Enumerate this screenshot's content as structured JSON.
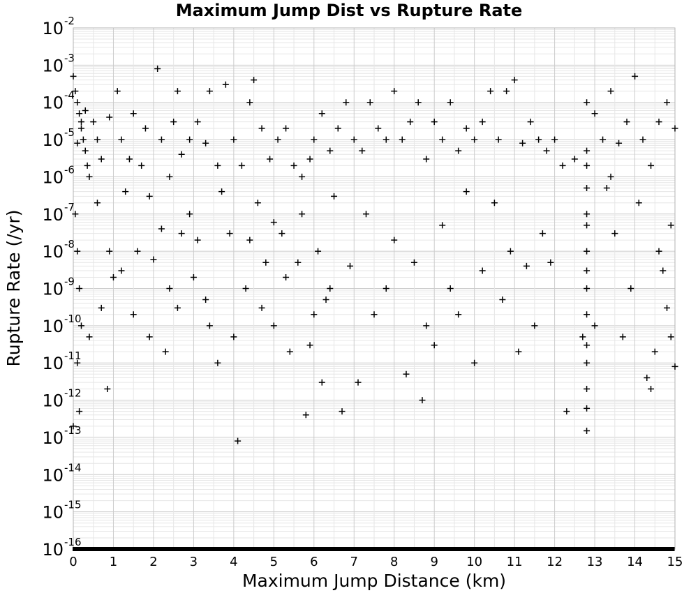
{
  "chart_data": {
    "type": "scatter",
    "title": "Maximum Jump Dist vs Rupture Rate",
    "xlabel": "Maximum Jump Distance (km)",
    "ylabel": "Rupture Rate (/yr)",
    "xlim": [
      0,
      15
    ],
    "ylim_log10": [
      -16,
      -2
    ],
    "y_scale": "log",
    "grid": true,
    "legend": "none",
    "marker": "plus",
    "marker_color": "#000000",
    "x_ticks": [
      "0",
      "1",
      "2",
      "3",
      "4",
      "5",
      "6",
      "7",
      "8",
      "9",
      "10",
      "11",
      "12",
      "13",
      "14",
      "15"
    ],
    "y_ticks": [
      {
        "base": "10",
        "exp": "-2"
      },
      {
        "base": "10",
        "exp": "-3"
      },
      {
        "base": "10",
        "exp": "-4"
      },
      {
        "base": "10",
        "exp": "-5"
      },
      {
        "base": "10",
        "exp": "-6"
      },
      {
        "base": "10",
        "exp": "-7"
      },
      {
        "base": "10",
        "exp": "-8"
      },
      {
        "base": "10",
        "exp": "-9"
      },
      {
        "base": "10",
        "exp": "-10"
      },
      {
        "base": "10",
        "exp": "-11"
      },
      {
        "base": "10",
        "exp": "-12"
      },
      {
        "base": "10",
        "exp": "-13"
      },
      {
        "base": "10",
        "exp": "-14"
      },
      {
        "base": "10",
        "exp": "-15"
      },
      {
        "base": "10",
        "exp": "-16"
      }
    ],
    "points": [
      {
        "x": 0.0,
        "y": 0.0005
      },
      {
        "x": 0.05,
        "y": 0.0002
      },
      {
        "x": 0.1,
        "y": 0.0001
      },
      {
        "x": 0.15,
        "y": 5e-05
      },
      {
        "x": 0.2,
        "y": 2e-05
      },
      {
        "x": 0.25,
        "y": 1e-05
      },
      {
        "x": 0.3,
        "y": 5e-06
      },
      {
        "x": 0.35,
        "y": 2e-06
      },
      {
        "x": 0.4,
        "y": 1e-06
      },
      {
        "x": 0.1,
        "y": 8e-06
      },
      {
        "x": 0.2,
        "y": 3e-05
      },
      {
        "x": 0.3,
        "y": 6e-05
      },
      {
        "x": 0.05,
        "y": 1e-07
      },
      {
        "x": 0.1,
        "y": 1e-08
      },
      {
        "x": 0.15,
        "y": 1e-09
      },
      {
        "x": 0.2,
        "y": 1e-10
      },
      {
        "x": 0.1,
        "y": 1e-11
      },
      {
        "x": 0.0,
        "y": 2e-13
      },
      {
        "x": 0.15,
        "y": 5e-13
      },
      {
        "x": 0.85,
        "y": 2e-12
      },
      {
        "x": 0.5,
        "y": 3e-05
      },
      {
        "x": 0.6,
        "y": 1e-05
      },
      {
        "x": 0.7,
        "y": 3e-06
      },
      {
        "x": 0.9,
        "y": 4e-05
      },
      {
        "x": 1.1,
        "y": 0.0002
      },
      {
        "x": 1.2,
        "y": 1e-05
      },
      {
        "x": 1.4,
        "y": 3e-06
      },
      {
        "x": 1.5,
        "y": 5e-05
      },
      {
        "x": 1.7,
        "y": 2e-06
      },
      {
        "x": 1.8,
        "y": 2e-05
      },
      {
        "x": 1.9,
        "y": 3e-07
      },
      {
        "x": 2.1,
        "y": 0.0008
      },
      {
        "x": 2.2,
        "y": 1e-05
      },
      {
        "x": 2.4,
        "y": 1e-06
      },
      {
        "x": 2.5,
        "y": 3e-05
      },
      {
        "x": 2.6,
        "y": 0.0002
      },
      {
        "x": 2.7,
        "y": 4e-06
      },
      {
        "x": 2.9,
        "y": 1e-05
      },
      {
        "x": 3.1,
        "y": 3e-05
      },
      {
        "x": 3.3,
        "y": 8e-06
      },
      {
        "x": 3.4,
        "y": 0.0002
      },
      {
        "x": 3.6,
        "y": 2e-06
      },
      {
        "x": 3.8,
        "y": 0.0003
      },
      {
        "x": 4.0,
        "y": 1e-05
      },
      {
        "x": 4.2,
        "y": 2e-06
      },
      {
        "x": 4.4,
        "y": 0.0001
      },
      {
        "x": 4.5,
        "y": 0.0004
      },
      {
        "x": 4.7,
        "y": 2e-05
      },
      {
        "x": 4.9,
        "y": 3e-06
      },
      {
        "x": 5.1,
        "y": 1e-05
      },
      {
        "x": 5.3,
        "y": 2e-05
      },
      {
        "x": 5.5,
        "y": 2e-06
      },
      {
        "x": 5.7,
        "y": 1e-06
      },
      {
        "x": 5.9,
        "y": 3e-06
      },
      {
        "x": 6.0,
        "y": 1e-05
      },
      {
        "x": 6.2,
        "y": 5e-05
      },
      {
        "x": 6.4,
        "y": 5e-06
      },
      {
        "x": 6.6,
        "y": 2e-05
      },
      {
        "x": 6.8,
        "y": 0.0001
      },
      {
        "x": 7.0,
        "y": 1e-05
      },
      {
        "x": 7.2,
        "y": 5e-06
      },
      {
        "x": 7.4,
        "y": 0.0001
      },
      {
        "x": 7.6,
        "y": 2e-05
      },
      {
        "x": 7.8,
        "y": 1e-05
      },
      {
        "x": 8.0,
        "y": 0.0002
      },
      {
        "x": 8.2,
        "y": 1e-05
      },
      {
        "x": 8.4,
        "y": 3e-05
      },
      {
        "x": 8.6,
        "y": 0.0001
      },
      {
        "x": 8.8,
        "y": 3e-06
      },
      {
        "x": 9.0,
        "y": 3e-05
      },
      {
        "x": 9.2,
        "y": 1e-05
      },
      {
        "x": 9.4,
        "y": 0.0001
      },
      {
        "x": 9.6,
        "y": 5e-06
      },
      {
        "x": 9.8,
        "y": 2e-05
      },
      {
        "x": 10.0,
        "y": 1e-05
      },
      {
        "x": 10.2,
        "y": 3e-05
      },
      {
        "x": 10.4,
        "y": 0.0002
      },
      {
        "x": 10.6,
        "y": 1e-05
      },
      {
        "x": 10.8,
        "y": 0.0002
      },
      {
        "x": 11.0,
        "y": 0.0004
      },
      {
        "x": 11.2,
        "y": 8e-06
      },
      {
        "x": 11.4,
        "y": 3e-05
      },
      {
        "x": 11.6,
        "y": 1e-05
      },
      {
        "x": 11.8,
        "y": 5e-06
      },
      {
        "x": 12.0,
        "y": 1e-05
      },
      {
        "x": 12.2,
        "y": 2e-06
      },
      {
        "x": 12.5,
        "y": 3e-06
      },
      {
        "x": 12.8,
        "y": 0.0001
      },
      {
        "x": 13.0,
        "y": 5e-05
      },
      {
        "x": 13.2,
        "y": 1e-05
      },
      {
        "x": 13.4,
        "y": 0.0002
      },
      {
        "x": 13.6,
        "y": 8e-06
      },
      {
        "x": 13.8,
        "y": 3e-05
      },
      {
        "x": 14.0,
        "y": 0.0005
      },
      {
        "x": 14.2,
        "y": 1e-05
      },
      {
        "x": 14.4,
        "y": 2e-06
      },
      {
        "x": 14.6,
        "y": 3e-05
      },
      {
        "x": 14.8,
        "y": 0.0001
      },
      {
        "x": 15.0,
        "y": 2e-05
      },
      {
        "x": 0.6,
        "y": 2e-07
      },
      {
        "x": 0.9,
        "y": 1e-08
      },
      {
        "x": 1.2,
        "y": 3e-09
      },
      {
        "x": 1.5,
        "y": 2e-10
      },
      {
        "x": 1.9,
        "y": 5e-11
      },
      {
        "x": 2.2,
        "y": 4e-08
      },
      {
        "x": 2.4,
        "y": 1e-09
      },
      {
        "x": 2.6,
        "y": 3e-10
      },
      {
        "x": 2.9,
        "y": 1e-07
      },
      {
        "x": 3.1,
        "y": 2e-08
      },
      {
        "x": 3.3,
        "y": 5e-10
      },
      {
        "x": 3.6,
        "y": 1e-11
      },
      {
        "x": 3.9,
        "y": 3e-08
      },
      {
        "x": 4.1,
        "y": 8e-14
      },
      {
        "x": 4.3,
        "y": 1e-09
      },
      {
        "x": 4.6,
        "y": 2e-07
      },
      {
        "x": 4.8,
        "y": 5e-09
      },
      {
        "x": 5.0,
        "y": 1e-10
      },
      {
        "x": 5.2,
        "y": 3e-08
      },
      {
        "x": 5.4,
        "y": 2e-11
      },
      {
        "x": 5.6,
        "y": 5e-09
      },
      {
        "x": 5.8,
        "y": 4e-13
      },
      {
        "x": 5.9,
        "y": 3e-11
      },
      {
        "x": 6.1,
        "y": 1e-08
      },
      {
        "x": 6.3,
        "y": 5e-10
      },
      {
        "x": 6.5,
        "y": 3e-07
      },
      {
        "x": 6.7,
        "y": 5e-13
      },
      {
        "x": 6.9,
        "y": 4e-09
      },
      {
        "x": 7.1,
        "y": 3e-12
      },
      {
        "x": 7.3,
        "y": 1e-07
      },
      {
        "x": 7.5,
        "y": 2e-10
      },
      {
        "x": 7.8,
        "y": 1e-09
      },
      {
        "x": 8.0,
        "y": 2e-08
      },
      {
        "x": 8.3,
        "y": 5e-12
      },
      {
        "x": 8.5,
        "y": 5e-09
      },
      {
        "x": 8.7,
        "y": 1e-12
      },
      {
        "x": 8.8,
        "y": 1e-10
      },
      {
        "x": 9.0,
        "y": 3e-11
      },
      {
        "x": 9.2,
        "y": 5e-08
      },
      {
        "x": 9.4,
        "y": 1e-09
      },
      {
        "x": 9.6,
        "y": 2e-10
      },
      {
        "x": 9.8,
        "y": 4e-07
      },
      {
        "x": 10.0,
        "y": 1e-11
      },
      {
        "x": 10.2,
        "y": 3e-09
      },
      {
        "x": 10.5,
        "y": 2e-07
      },
      {
        "x": 10.7,
        "y": 5e-10
      },
      {
        "x": 10.9,
        "y": 1e-08
      },
      {
        "x": 11.1,
        "y": 2e-11
      },
      {
        "x": 11.3,
        "y": 4e-09
      },
      {
        "x": 11.5,
        "y": 1e-10
      },
      {
        "x": 11.7,
        "y": 3e-08
      },
      {
        "x": 11.9,
        "y": 5e-09
      },
      {
        "x": 12.3,
        "y": 5e-13
      },
      {
        "x": 12.7,
        "y": 5e-11
      },
      {
        "x": 12.8,
        "y": 1e-09
      },
      {
        "x": 12.8,
        "y": 2e-10
      },
      {
        "x": 12.8,
        "y": 1e-08
      },
      {
        "x": 12.8,
        "y": 5e-08
      },
      {
        "x": 12.8,
        "y": 1e-07
      },
      {
        "x": 12.8,
        "y": 5e-07
      },
      {
        "x": 12.8,
        "y": 2e-06
      },
      {
        "x": 12.8,
        "y": 5e-06
      },
      {
        "x": 12.8,
        "y": 3e-11
      },
      {
        "x": 12.8,
        "y": 1e-11
      },
      {
        "x": 12.8,
        "y": 2e-12
      },
      {
        "x": 12.8,
        "y": 6e-13
      },
      {
        "x": 12.8,
        "y": 1.5e-13
      },
      {
        "x": 12.8,
        "y": 3e-09
      },
      {
        "x": 13.0,
        "y": 1e-10
      },
      {
        "x": 13.3,
        "y": 5e-07
      },
      {
        "x": 13.5,
        "y": 3e-08
      },
      {
        "x": 13.7,
        "y": 5e-11
      },
      {
        "x": 13.9,
        "y": 1e-09
      },
      {
        "x": 14.1,
        "y": 2e-07
      },
      {
        "x": 14.3,
        "y": 4e-12
      },
      {
        "x": 14.4,
        "y": 2e-12
      },
      {
        "x": 14.6,
        "y": 1e-08
      },
      {
        "x": 14.8,
        "y": 3e-10
      },
      {
        "x": 14.9,
        "y": 5e-11
      },
      {
        "x": 15.0,
        "y": 8e-12
      },
      {
        "x": 14.9,
        "y": 5e-08
      },
      {
        "x": 14.7,
        "y": 3e-09
      },
      {
        "x": 14.5,
        "y": 2e-11
      },
      {
        "x": 13.4,
        "y": 1e-06
      },
      {
        "x": 0.4,
        "y": 5e-11
      },
      {
        "x": 0.7,
        "y": 3e-10
      },
      {
        "x": 1.0,
        "y": 2e-09
      },
      {
        "x": 1.3,
        "y": 4e-07
      },
      {
        "x": 1.6,
        "y": 1e-08
      },
      {
        "x": 2.0,
        "y": 6e-09
      },
      {
        "x": 2.3,
        "y": 2e-11
      },
      {
        "x": 2.7,
        "y": 3e-08
      },
      {
        "x": 3.0,
        "y": 2e-09
      },
      {
        "x": 3.4,
        "y": 1e-10
      },
      {
        "x": 3.7,
        "y": 4e-07
      },
      {
        "x": 4.0,
        "y": 5e-11
      },
      {
        "x": 4.4,
        "y": 2e-08
      },
      {
        "x": 4.7,
        "y": 3e-10
      },
      {
        "x": 5.0,
        "y": 6e-08
      },
      {
        "x": 5.3,
        "y": 2e-09
      },
      {
        "x": 5.7,
        "y": 1e-07
      },
      {
        "x": 6.0,
        "y": 2e-10
      },
      {
        "x": 6.2,
        "y": 3e-12
      },
      {
        "x": 6.4,
        "y": 1e-09
      }
    ],
    "baseline_value": 1e-16
  }
}
